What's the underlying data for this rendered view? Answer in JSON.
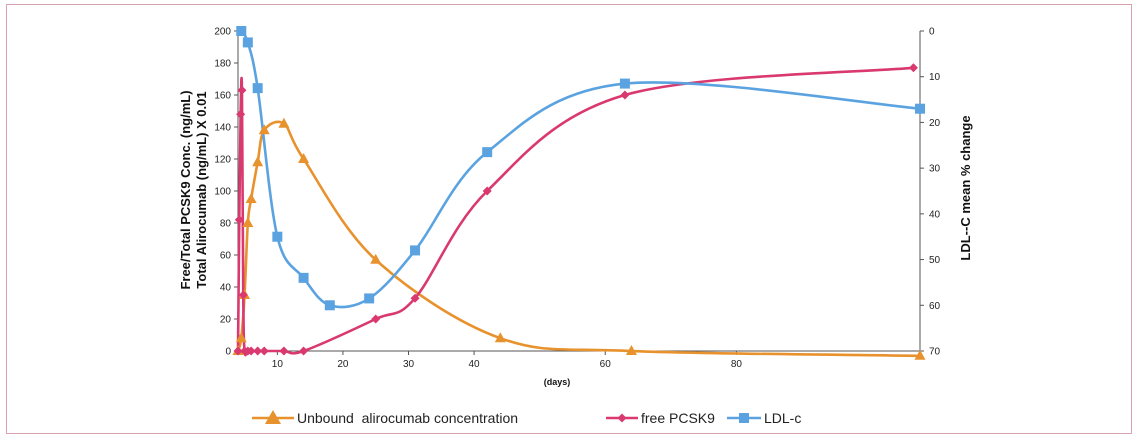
{
  "chart_data": {
    "type": "line",
    "title": "",
    "xlabel": "(days)",
    "ylabel_left_line1": "Free/Total PCSK9 Conc. (ng/mL)",
    "ylabel_left_line2": "Total Alirocumab (ng/mL) X 0.01",
    "ylabel_right": "LDL--C mean % change",
    "xlim": [
      4,
      108
    ],
    "ylim_left": [
      0,
      200
    ],
    "ylim_right": [
      0,
      70
    ],
    "right_axis_inverted": true,
    "x_ticks": [
      10,
      20,
      30,
      40,
      60,
      80
    ],
    "y_ticks_left": [
      0,
      20,
      40,
      60,
      80,
      100,
      120,
      140,
      160,
      180,
      200
    ],
    "y_ticks_right": [
      0,
      10,
      20,
      30,
      40,
      50,
      60,
      70
    ],
    "legend_position": "bottom",
    "series": [
      {
        "name": "Unbound  alirocumab concentration",
        "axis": "left",
        "color": "#e8922e",
        "marker": "triangle",
        "x": [
          4,
          4.5,
          5,
          5.5,
          6,
          7,
          8,
          11,
          14,
          25,
          44,
          64,
          108
        ],
        "y": [
          0,
          8,
          35,
          80,
          95,
          118,
          138,
          142,
          120,
          57,
          8,
          0,
          -3
        ]
      },
      {
        "name": "free PCSK9",
        "axis": "left",
        "color": "#d9396f",
        "marker": "diamond",
        "x": [
          4,
          4.2,
          4.4,
          4.6,
          4.8,
          5,
          5.5,
          6,
          7,
          8,
          11,
          14,
          25,
          31,
          42,
          63,
          107
        ],
        "y": [
          0,
          82,
          148,
          163,
          35,
          0,
          0,
          0,
          0,
          0,
          0,
          0,
          20,
          33,
          100,
          160,
          177
        ]
      },
      {
        "name": "LDL-c",
        "axis": "right",
        "color": "#5ba3e0",
        "marker": "square",
        "x": [
          4.5,
          5.5,
          7,
          10,
          14,
          18,
          24,
          31,
          42,
          63,
          108
        ],
        "y": [
          0,
          2.5,
          12.5,
          45,
          54,
          60,
          58.5,
          48,
          26.5,
          11.5,
          17
        ]
      }
    ]
  }
}
